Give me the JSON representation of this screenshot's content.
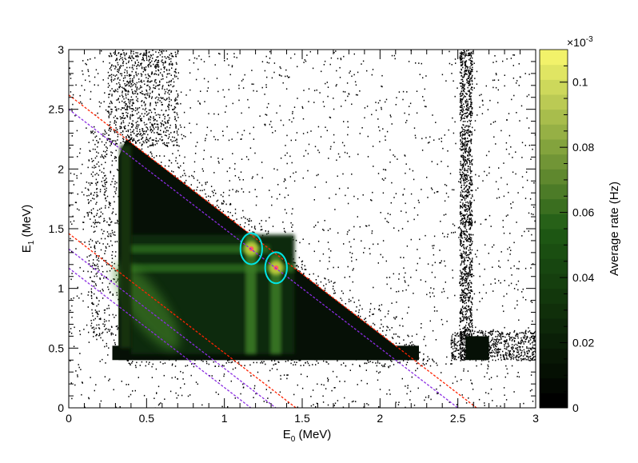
{
  "chart_data": {
    "type": "heatmap",
    "xlabel": {
      "main": "E",
      "sub": "0",
      "unit": " (MeV)"
    },
    "ylabel": {
      "main": "E",
      "sub": "1",
      "unit": " (MeV)"
    },
    "xlim": [
      0,
      3
    ],
    "ylim": [
      0,
      3
    ],
    "x_ticks": [
      "0",
      "0.5",
      "1",
      "1.5",
      "2",
      "2.5",
      "3"
    ],
    "y_ticks": [
      "0",
      "0.5",
      "1",
      "1.5",
      "2",
      "2.5",
      "3"
    ],
    "colorbar": {
      "label": "Average rate (Hz)",
      "range": [
        0,
        0.00011
      ],
      "exponent_label": {
        "base": "×10",
        "exp": "-3"
      },
      "ticks": [
        "0",
        "0.02",
        "0.04",
        "0.06",
        "0.08",
        "0.1"
      ],
      "tick_values": [
        0,
        0.02,
        0.04,
        0.06,
        0.08,
        0.1
      ],
      "display_max": 0.11
    },
    "regions": {
      "triangle_population": {
        "upper_sum_MeV": 2.62,
        "x_min": 0.32,
        "y_min": 0.4,
        "y_max": 2.25
      },
      "source_line": {
        "x_center": 2.6,
        "x_width": 0.1,
        "y_min": 0.4,
        "y_max": 3.0
      },
      "vertical_bands_x": [
        1.17,
        1.33
      ],
      "horizontal_bands_y": [
        1.17,
        1.33
      ]
    },
    "ellipses": [
      {
        "cx": 1.173,
        "cy": 1.332,
        "rx": 0.07,
        "ry": 0.13,
        "color": "#00e5e5"
      },
      {
        "cx": 1.332,
        "cy": 1.173,
        "rx": 0.07,
        "ry": 0.13,
        "color": "#00e5e5"
      }
    ],
    "cut_lines": [
      {
        "sum": 2.62,
        "color": "#ff2200",
        "style": "dashed"
      },
      {
        "sum": 2.5,
        "color": "#8a2be2",
        "style": "dashed"
      },
      {
        "sum": 1.46,
        "color": "#ff2200",
        "style": "dashed"
      },
      {
        "sum": 1.33,
        "color": "#8a2be2",
        "style": "dashed"
      },
      {
        "sum": 1.17,
        "color": "#8a2be2",
        "style": "dashed"
      }
    ],
    "colors": {
      "low": "#000000",
      "mid": "#1e5a14",
      "high": "#f2f26a"
    }
  }
}
